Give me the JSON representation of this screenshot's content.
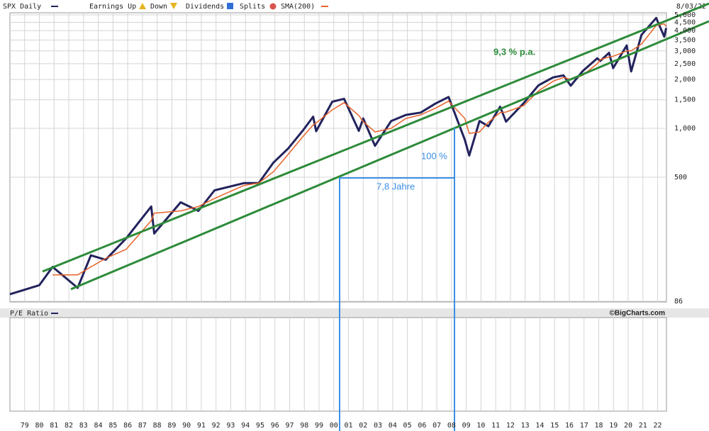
{
  "chart_data": {
    "type": "line",
    "date": "8/03/22",
    "legend_labels": [
      "Earnings Up",
      "Down",
      "Dividends",
      "Splits"
    ],
    "lower_panel_label": "P/E Ratio",
    "credit": "©BigCharts.com",
    "annotations": [
      "9,3 % p.a.",
      "100 %",
      "7,8 Jahre"
    ],
    "log_y": true,
    "grid": true,
    "x": [
      1978.0,
      1980.0,
      1980.9,
      1982.6,
      1983.5,
      1984.5,
      1985.9,
      1987.6,
      1987.8,
      1989.6,
      1990.8,
      1991.9,
      1993.9,
      1994.9,
      1995.9,
      1996.9,
      1997.9,
      1998.6,
      1998.8,
      1999.9,
      2000.7,
      2001.7,
      2002.0,
      2002.8,
      2003.9,
      2004.9,
      2005.9,
      2006.9,
      2007.8,
      2008.9,
      2009.2,
      2009.9,
      2010.5,
      2011.3,
      2011.7,
      2012.9,
      2013.9,
      2014.9,
      2015.6,
      2016.1,
      2016.9,
      2017.9,
      2018.1,
      2018.7,
      2018.98,
      2019.9,
      2020.2,
      2020.9,
      2021.9,
      2022.45,
      2022.58
    ],
    "series": [
      {
        "name": "SPX Daily",
        "color": "#23235e",
        "values": [
          95,
          108,
          140,
          104,
          165,
          155,
          210,
          330,
          225,
          350,
          310,
          415,
          460,
          460,
          615,
          750,
          970,
          1180,
          960,
          1460,
          1520,
          965,
          1150,
          780,
          1110,
          1210,
          1250,
          1420,
          1560,
          850,
          680,
          1110,
          1030,
          1360,
          1100,
          1430,
          1840,
          2060,
          2120,
          1830,
          2250,
          2700,
          2600,
          2920,
          2350,
          3240,
          2240,
          3760,
          4790,
          3670,
          4150
        ]
      },
      {
        "name": "SMA(200)",
        "color": "#e8632a",
        "values": [
          null,
          null,
          125,
          125,
          140,
          158,
          180,
          270,
          300,
          310,
          330,
          370,
          445,
          460,
          540,
          690,
          890,
          1050,
          1080,
          1300,
          1440,
          1200,
          1100,
          950,
          1000,
          1150,
          1210,
          1330,
          1470,
          1150,
          930,
          950,
          1090,
          1250,
          1260,
          1380,
          1700,
          1950,
          2060,
          2000,
          2120,
          2500,
          2650,
          2750,
          2780,
          3000,
          3000,
          3300,
          4300,
          4400,
          4250
        ]
      }
    ],
    "xlim": [
      1978,
      2022.6
    ],
    "xticks": [
      {
        "value": 1979,
        "label": "79"
      },
      {
        "value": 1980,
        "label": "80"
      },
      {
        "value": 1981,
        "label": "81"
      },
      {
        "value": 1982,
        "label": "82"
      },
      {
        "value": 1983,
        "label": "83"
      },
      {
        "value": 1984,
        "label": "84"
      },
      {
        "value": 1985,
        "label": "85"
      },
      {
        "value": 1986,
        "label": "86"
      },
      {
        "value": 1987,
        "label": "87"
      },
      {
        "value": 1988,
        "label": "88"
      },
      {
        "value": 1989,
        "label": "89"
      },
      {
        "value": 1990,
        "label": "90"
      },
      {
        "value": 1991,
        "label": "91"
      },
      {
        "value": 1992,
        "label": "92"
      },
      {
        "value": 1993,
        "label": "93"
      },
      {
        "value": 1994,
        "label": "94"
      },
      {
        "value": 1995,
        "label": "95"
      },
      {
        "value": 1996,
        "label": "96"
      },
      {
        "value": 1997,
        "label": "97"
      },
      {
        "value": 1998,
        "label": "98"
      },
      {
        "value": 1999,
        "label": "99"
      },
      {
        "value": 2000,
        "label": "00"
      },
      {
        "value": 2001,
        "label": "01"
      },
      {
        "value": 2002,
        "label": "02"
      },
      {
        "value": 2003,
        "label": "03"
      },
      {
        "value": 2004,
        "label": "04"
      },
      {
        "value": 2005,
        "label": "05"
      },
      {
        "value": 2006,
        "label": "06"
      },
      {
        "value": 2007,
        "label": "07"
      },
      {
        "value": 2008,
        "label": "08"
      },
      {
        "value": 2009,
        "label": "09"
      },
      {
        "value": 2010,
        "label": "10"
      },
      {
        "value": 2011,
        "label": "11"
      },
      {
        "value": 2012,
        "label": "12"
      },
      {
        "value": 2013,
        "label": "13"
      },
      {
        "value": 2014,
        "label": "14"
      },
      {
        "value": 2015,
        "label": "15"
      },
      {
        "value": 2016,
        "label": "16"
      },
      {
        "value": 2017,
        "label": "17"
      },
      {
        "value": 2018,
        "label": "18"
      },
      {
        "value": 2019,
        "label": "19"
      },
      {
        "value": 2020,
        "label": "20"
      },
      {
        "value": 2021,
        "label": "21"
      },
      {
        "value": 2022,
        "label": "22"
      }
    ],
    "ylim": [
      86,
      5000
    ],
    "yticks": [
      86,
      500,
      {
        "value": 1000,
        "label": "1,000"
      },
      {
        "value": 1500,
        "label": "1,500"
      },
      {
        "value": 2000,
        "label": "2,000"
      },
      {
        "value": 2500,
        "label": "2,500"
      },
      {
        "value": 3000,
        "label": "3,000"
      },
      {
        "value": 3500,
        "label": "3,500"
      },
      {
        "value": 4000,
        "label": "4,000"
      },
      {
        "value": 4500,
        "label": "4,500"
      },
      {
        "value": 5000,
        "label": "5,000"
      }
    ]
  }
}
